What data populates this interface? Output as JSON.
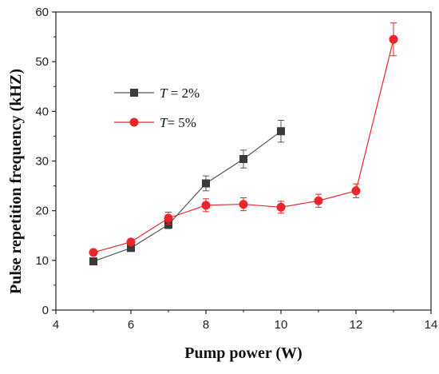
{
  "chart_data": {
    "type": "line",
    "xlabel": "Pump power (W)",
    "ylabel": "Pulse repetition frequency (kHZ)",
    "xlim": [
      4,
      14
    ],
    "ylim": [
      0,
      60
    ],
    "xticks": [
      "4",
      "6",
      "8",
      "10",
      "12",
      "14"
    ],
    "yticks": [
      "0",
      "10",
      "20",
      "30",
      "40",
      "50",
      "60"
    ],
    "grid": false,
    "legend_position": "upper-left",
    "series": [
      {
        "name_italic": "T",
        "name_rest": " = 2%",
        "color": "#555555",
        "marker": "square",
        "x": [
          5,
          6,
          7,
          8,
          9,
          10
        ],
        "y": [
          9.8,
          12.5,
          17.2,
          25.5,
          30.4,
          36.0
        ],
        "err": [
          0.4,
          0.6,
          0.8,
          1.5,
          1.8,
          2.2
        ]
      },
      {
        "name_italic": "T",
        "name_rest": "= 5%",
        "color": "#e8262b",
        "marker": "circle",
        "x": [
          5,
          6,
          7,
          8,
          9,
          10,
          11,
          12,
          13
        ],
        "y": [
          11.6,
          13.7,
          18.5,
          21.1,
          21.3,
          20.7,
          22.0,
          24.0,
          54.5
        ],
        "err": [
          0.5,
          0.6,
          1.2,
          1.3,
          1.3,
          1.2,
          1.3,
          1.4,
          3.3
        ]
      }
    ]
  }
}
